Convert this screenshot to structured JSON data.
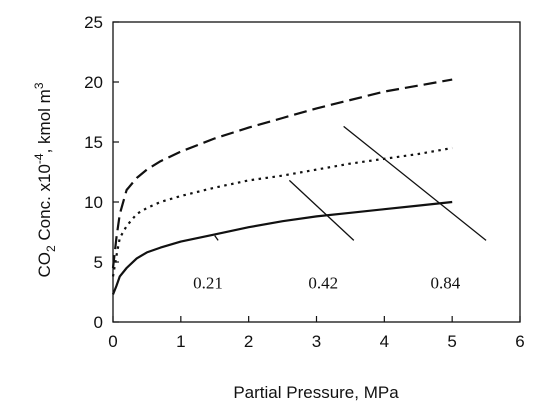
{
  "chart_data": {
    "type": "line",
    "xlabel": "Partial Pressure, MPa",
    "ylabel": {
      "pre": "CO",
      "sub": "2",
      "mid": " Conc. x10",
      "sup": "-4",
      "post": ", kmol m",
      "sup2": "3"
    },
    "xlim": [
      0,
      6
    ],
    "ylim": [
      0,
      25
    ],
    "xticks": [
      "0",
      "1",
      "2",
      "3",
      "4",
      "5",
      "6"
    ],
    "yticks": [
      "0",
      "5",
      "10",
      "15",
      "20",
      "25"
    ],
    "grid": false,
    "series": [
      {
        "name": "0.21",
        "style": "solid",
        "x": [
          0.0,
          0.05,
          0.1,
          0.2,
          0.35,
          0.5,
          0.7,
          1.0,
          1.5,
          2.0,
          2.5,
          3.0,
          3.5,
          4.0,
          4.5,
          5.0
        ],
        "y": [
          2.3,
          3.0,
          3.8,
          4.5,
          5.3,
          5.8,
          6.2,
          6.7,
          7.3,
          7.9,
          8.4,
          8.8,
          9.1,
          9.4,
          9.7,
          10.0
        ]
      },
      {
        "name": "0.42",
        "style": "dotted",
        "x": [
          0.0,
          0.05,
          0.1,
          0.2,
          0.35,
          0.5,
          0.7,
          1.0,
          1.5,
          2.0,
          2.5,
          3.0,
          3.5,
          4.0,
          4.5,
          5.0
        ],
        "y": [
          3.8,
          5.5,
          7.0,
          8.0,
          9.0,
          9.5,
          10.0,
          10.5,
          11.2,
          11.8,
          12.2,
          12.7,
          13.2,
          13.6,
          14.0,
          14.5
        ]
      },
      {
        "name": "0.84",
        "style": "dashed",
        "x": [
          0.0,
          0.05,
          0.1,
          0.2,
          0.35,
          0.5,
          0.7,
          1.0,
          1.5,
          2.0,
          2.5,
          3.0,
          3.5,
          4.0,
          4.5,
          5.0
        ],
        "y": [
          4.5,
          7.0,
          9.0,
          11.0,
          12.0,
          12.7,
          13.4,
          14.2,
          15.3,
          16.2,
          17.0,
          17.8,
          18.5,
          19.2,
          19.7,
          20.2
        ]
      }
    ],
    "annotations": [
      {
        "text": "0.21",
        "label_x": 1.4,
        "label_y": 3.3,
        "line_from": [
          1.55,
          6.8
        ],
        "line_to": [
          1.5,
          7.2
        ]
      },
      {
        "text": "0.42",
        "label_x": 3.1,
        "label_y": 3.3,
        "line_from": [
          3.55,
          6.8
        ],
        "line_to": [
          2.6,
          11.8
        ]
      },
      {
        "text": "0.84",
        "label_x": 4.9,
        "label_y": 3.3,
        "line_from": [
          5.5,
          6.8
        ],
        "line_to": [
          3.4,
          16.3
        ]
      }
    ]
  }
}
